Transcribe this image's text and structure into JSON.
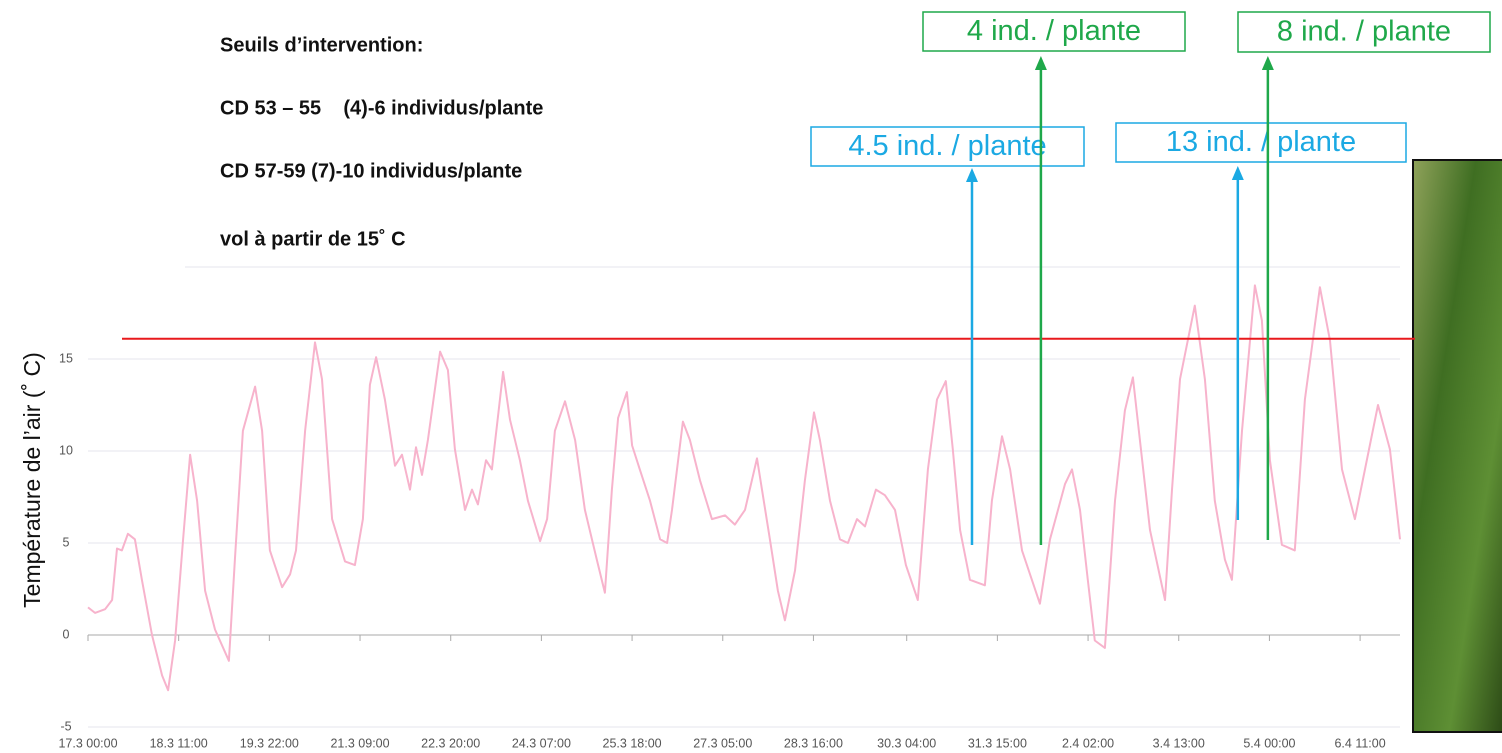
{
  "chart_data": {
    "type": "line",
    "notes": [
      "Seuils d’intervention:",
      "CD 53 – 55    (4)-6 individus/plante",
      "CD 57-59 (7)-10 individus/plante",
      "vol à partir de 15˚ C"
    ],
    "y_label": "Température de l’air (˚ C)",
    "color": "#f7b3cc",
    "x": [
      0,
      2.7,
      6.6,
      9.3,
      11.2,
      13.1,
      15.4,
      18.1,
      20.8,
      24.7,
      28.6,
      30.9,
      33.6,
      36.7,
      39.4,
      42.1,
      45.2,
      49.0,
      54.4,
      56.7,
      59.8,
      64.5,
      67.2,
      70.2,
      74.9,
      78.0,
      80.3,
      83.8,
      87.6,
      90.3,
      94.2,
      99.2,
      103.0,
      106.1,
      108.8,
      111.2,
      114.6,
      118.5,
      121.2,
      124.3,
      126.6,
      128.9,
      131.2,
      135.9,
      138.9,
      141.6,
      145.5,
      148.2,
      150.5,
      153.6,
      155.9,
      160.2,
      162.9,
      166.7,
      169.8,
      174.5,
      177.2,
      180.2,
      184.1,
      188.0,
      191.8,
      196.4,
      199.5,
      202.2,
      204.6,
      208.0,
      210.0,
      213.0,
      216.9,
      220.8,
      223.5,
      225.4,
      229.6,
      232.3,
      236.2,
      240.8,
      245.9,
      249.7,
      253.6,
      258.2,
      263.2,
      266.3,
      269.0,
      272.9,
      276.7,
      280.2,
      282.5,
      286.4,
      290.2,
      293.3,
      296.8,
      299.9,
      304.1,
      307.6,
      311.5,
      315.7,
      320.3,
      324.2,
      327.7,
      331.1,
      333.8,
      336.6,
      340.4,
      346.2,
      348.9,
      352.8,
      355.9,
      360.5,
      367.4,
      371.3,
      374.4,
      377.1,
      379.8,
      382.9,
      385.9,
      388.6,
      392.5,
      396.4,
      400.2,
      403.3,
      406.0,
      409.9,
      415.7,
      418.4,
      421.5,
      427.2,
      431.1,
      434.9,
      438.8,
      441.5,
      445.4,
      450.4,
      453.1,
      456.2,
      460.8,
      465.8,
      469.7,
      475.5,
      479.4,
      484.0,
      489.0,
      497.9,
      502.5,
      506.4
    ],
    "values": [
      1.5,
      1.2,
      1.4,
      1.9,
      4.7,
      4.6,
      5.5,
      5.2,
      3.0,
      0,
      -2.2,
      -3.0,
      -0.3,
      5.2,
      9.8,
      7.3,
      2.4,
      0.3,
      -1.4,
      4.1,
      11.1,
      13.5,
      11.1,
      4.6,
      2.6,
      3.3,
      4.6,
      11.1,
      15.9,
      13.9,
      6.3,
      4.0,
      3.8,
      6.3,
      13.6,
      15.1,
      12.8,
      9.2,
      9.8,
      7.9,
      10.2,
      8.7,
      10.6,
      15.4,
      14.4,
      10.1,
      6.8,
      7.9,
      7.1,
      9.5,
      9.0,
      14.3,
      11.7,
      9.5,
      7.3,
      5.1,
      6.3,
      11.1,
      12.7,
      10.6,
      6.8,
      4.1,
      2.3,
      7.9,
      11.8,
      13.2,
      10.3,
      9.0,
      7.3,
      5.2,
      5.0,
      6.8,
      11.6,
      10.6,
      8.4,
      6.3,
      6.5,
      6.0,
      6.8,
      9.6,
      5.2,
      2.4,
      0.8,
      3.5,
      8.4,
      12.1,
      10.6,
      7.3,
      5.2,
      5.0,
      6.3,
      5.9,
      7.9,
      7.6,
      6.8,
      3.8,
      1.9,
      9.0,
      12.8,
      13.8,
      10.1,
      5.7,
      3.0,
      2.7,
      7.3,
      10.8,
      9.0,
      4.6,
      1.7,
      5.2,
      6.8,
      8.2,
      9.0,
      6.8,
      3.0,
      -0.3,
      -0.7,
      7.3,
      12.2,
      14.0,
      10.6,
      5.7,
      1.9,
      7.9,
      13.9,
      17.9,
      13.9,
      7.3,
      4.1,
      3.0,
      11.1,
      19.0,
      17.1,
      9.5,
      4.9,
      4.6,
      12.8,
      18.9,
      16.0,
      9.0,
      6.3,
      12.5,
      10.1,
      5.2
    ],
    "xlim": [
      0,
      506.4
    ],
    "xticks": [
      {
        "value": 0,
        "label": "17.3 00:00"
      },
      {
        "value": 35,
        "label": "18.3 11:00"
      },
      {
        "value": 70,
        "label": "19.3 22:00"
      },
      {
        "value": 105,
        "label": "21.3 09:00"
      },
      {
        "value": 140,
        "label": "22.3 20:00"
      },
      {
        "value": 175,
        "label": "24.3 07:00"
      },
      {
        "value": 210,
        "label": "25.3 18:00"
      },
      {
        "value": 245,
        "label": "27.3 05:00"
      },
      {
        "value": 280,
        "label": "28.3 16:00"
      },
      {
        "value": 316,
        "label": "30.3 04:00"
      },
      {
        "value": 351,
        "label": "31.3 15:00"
      },
      {
        "value": 386,
        "label": "2.4 02:00"
      },
      {
        "value": 421,
        "label": "3.4 13:00"
      },
      {
        "value": 456,
        "label": "5.4 00:00"
      },
      {
        "value": 491,
        "label": "6.4 11:00"
      }
    ],
    "ylim": [
      -5,
      20
    ],
    "yticks": [
      -5,
      0,
      5,
      10,
      15
    ],
    "grid": true,
    "reference_line": {
      "value": 16.1,
      "color": "#e8191c"
    },
    "annotations": [
      {
        "text": "4.5 ind. / plante",
        "x": 341.2,
        "color": "#1ba9e3"
      },
      {
        "text": "4 ind. / plante",
        "x": 367.8,
        "color": "#1fa84a"
      },
      {
        "text": "13 ind. / plante",
        "x": 443.8,
        "color": "#1ba9e3"
      },
      {
        "text": "8 ind. / plante",
        "x": 455.4,
        "color": "#1fa84a"
      }
    ]
  }
}
